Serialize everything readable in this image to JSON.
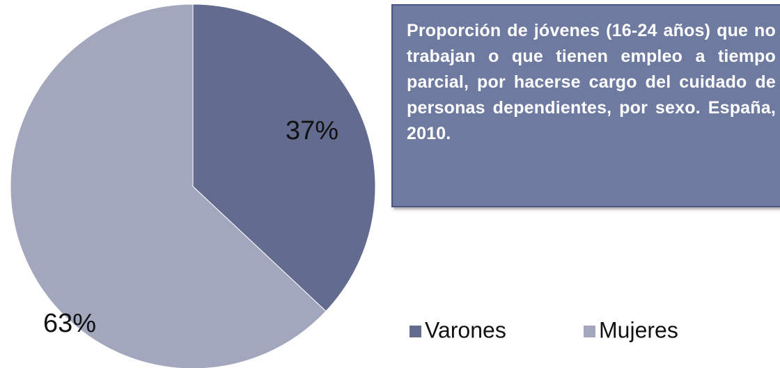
{
  "chart_data": {
    "type": "pie",
    "title": "Proporción de jóvenes (16-24 años) que no trabajan o que tienen empleo a tiempo parcial, por hacerse cargo del cuidado de personas dependientes, por sexo. España, 2010.",
    "categories": [
      "Varones",
      "Mujeres"
    ],
    "values": [
      37,
      63
    ],
    "value_labels": [
      "37%",
      "63%"
    ],
    "colors": [
      "#636b8f",
      "#a3a7bd"
    ],
    "legend": "bottom-right"
  }
}
